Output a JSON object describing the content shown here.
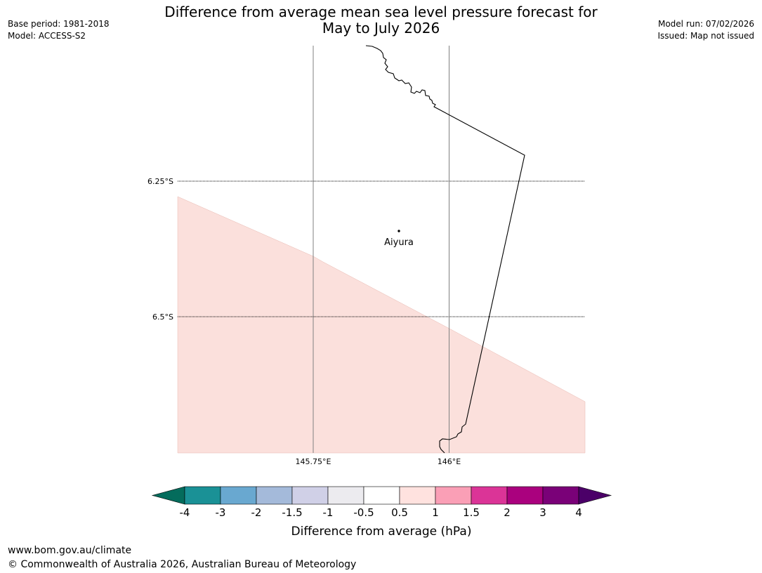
{
  "title_line1": "Difference from average mean sea level pressure forecast for",
  "title_line2": "May to July 2026",
  "header_left": [
    "Base period: 1981-2018",
    "Model: ACCESS-S2"
  ],
  "header_right": [
    "Model run: 07/02/2026",
    "Issued: Map not issued"
  ],
  "map": {
    "lat_labels": [
      "6.25°S",
      "6.5°S"
    ],
    "lon_labels": [
      "145.75°E",
      "146°E"
    ],
    "place": "Aiyura",
    "shaded_category": "0.5 to 1 hPa",
    "shade_color": "#fbe0dc"
  },
  "colorbar": {
    "label": "Difference from average (hPa)",
    "tick_labels": [
      "-4",
      "-3",
      "-2",
      "-1.5",
      "-1",
      "-0.5",
      "0.5",
      "1",
      "1.5",
      "2",
      "3",
      "4"
    ],
    "colors": [
      "#1a9196",
      "#69a8d0",
      "#a4bada",
      "#d0d0e7",
      "#ecebef",
      "#ffffff",
      "#ffe2df",
      "#fa9fb6",
      "#db3497",
      "#aa017e",
      "#7a0178"
    ],
    "low_color": "#046c5c",
    "high_color": "#4b0068"
  },
  "footer": {
    "url": "www.bom.gov.au/climate",
    "copyright": "© Commonwealth of Australia 2026, Australian Bureau of Meteorology"
  }
}
